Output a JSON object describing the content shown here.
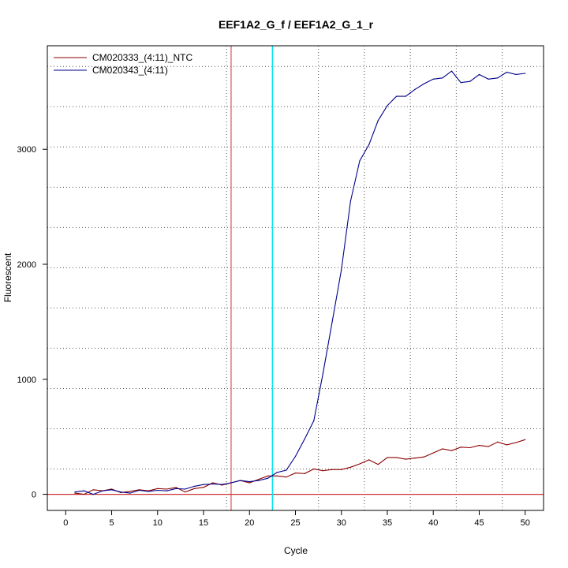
{
  "chart_data": {
    "type": "line",
    "title": "EEF1A2_G_f / EEF1A2_G_1_r",
    "xlabel": "Cycle",
    "ylabel": "Fluorescent",
    "xlim": [
      -2,
      52
    ],
    "ylim": [
      -140,
      3900
    ],
    "xticks": [
      0,
      5,
      10,
      15,
      20,
      25,
      30,
      35,
      40,
      45,
      50
    ],
    "yticks": [
      0,
      1000,
      2000,
      3000
    ],
    "grid": "dotted",
    "legend_position": "top-left",
    "threshold": 0,
    "vlines": [
      {
        "x": 18,
        "color": "#cd3333"
      },
      {
        "x": 22.5,
        "color": "#00e5ee"
      }
    ],
    "series": [
      {
        "name": "CM020333_(4:11)_NTC",
        "color": "#8b0000",
        "x": [
          1,
          2,
          3,
          4,
          5,
          6,
          7,
          8,
          9,
          10,
          11,
          12,
          13,
          14,
          15,
          16,
          17,
          18,
          19,
          20,
          21,
          22,
          23,
          24,
          25,
          26,
          27,
          28,
          29,
          30,
          31,
          32,
          33,
          34,
          35,
          36,
          37,
          38,
          39,
          40,
          41,
          42,
          43,
          44,
          45,
          46,
          47,
          48,
          49,
          50
        ],
        "values": [
          10,
          0,
          40,
          30,
          45,
          15,
          25,
          40,
          30,
          50,
          45,
          60,
          20,
          50,
          60,
          100,
          80,
          100,
          120,
          100,
          130,
          160,
          160,
          150,
          185,
          180,
          220,
          205,
          215,
          215,
          235,
          265,
          300,
          260,
          320,
          320,
          305,
          315,
          325,
          360,
          395,
          380,
          410,
          405,
          425,
          415,
          455,
          430,
          450,
          475
        ]
      },
      {
        "name": "CM020343_(4:11)",
        "color": "#00008b",
        "x": [
          1,
          2,
          3,
          4,
          5,
          6,
          7,
          8,
          9,
          10,
          11,
          12,
          13,
          14,
          15,
          16,
          17,
          18,
          19,
          20,
          21,
          22,
          23,
          24,
          25,
          26,
          27,
          28,
          29,
          30,
          31,
          32,
          33,
          34,
          35,
          36,
          37,
          38,
          39,
          40,
          41,
          42,
          43,
          44,
          45,
          46,
          47,
          48,
          49,
          50
        ],
        "values": [
          20,
          30,
          0,
          30,
          40,
          20,
          10,
          35,
          25,
          35,
          30,
          50,
          45,
          70,
          85,
          90,
          85,
          100,
          120,
          110,
          120,
          140,
          190,
          210,
          330,
          480,
          640,
          1050,
          1500,
          1950,
          2550,
          2900,
          3040,
          3250,
          3380,
          3460,
          3460,
          3520,
          3570,
          3610,
          3620,
          3680,
          3580,
          3590,
          3650,
          3610,
          3620,
          3670,
          3650,
          3660
        ]
      }
    ]
  }
}
